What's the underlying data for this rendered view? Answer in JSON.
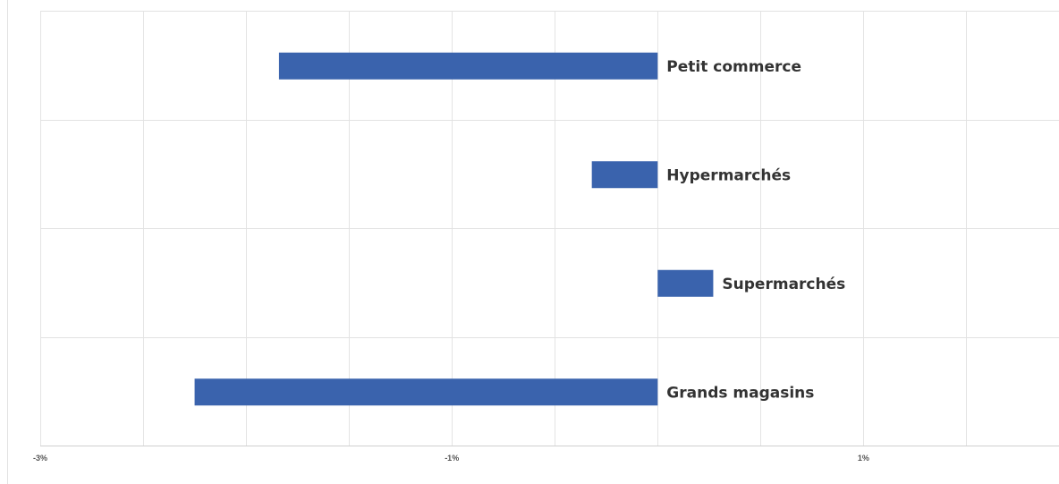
{
  "chart_data": {
    "type": "bar",
    "orientation": "horizontal",
    "categories": [
      "Petit commerce",
      "Hypermarchés",
      "Supermarchés",
      "Grands magasins"
    ],
    "values": [
      -1.84,
      -0.32,
      0.27,
      -2.25
    ],
    "xlim": [
      -3,
      1.95
    ],
    "x_ticks": [
      -3,
      -1,
      1
    ],
    "x_tick_labels": [
      "-3%",
      "-1%",
      "1%"
    ],
    "minor_gridlines_step": 0.5,
    "grid": true,
    "bar_color": "#3a63ad",
    "title": "",
    "xlabel": "",
    "ylabel": ""
  }
}
